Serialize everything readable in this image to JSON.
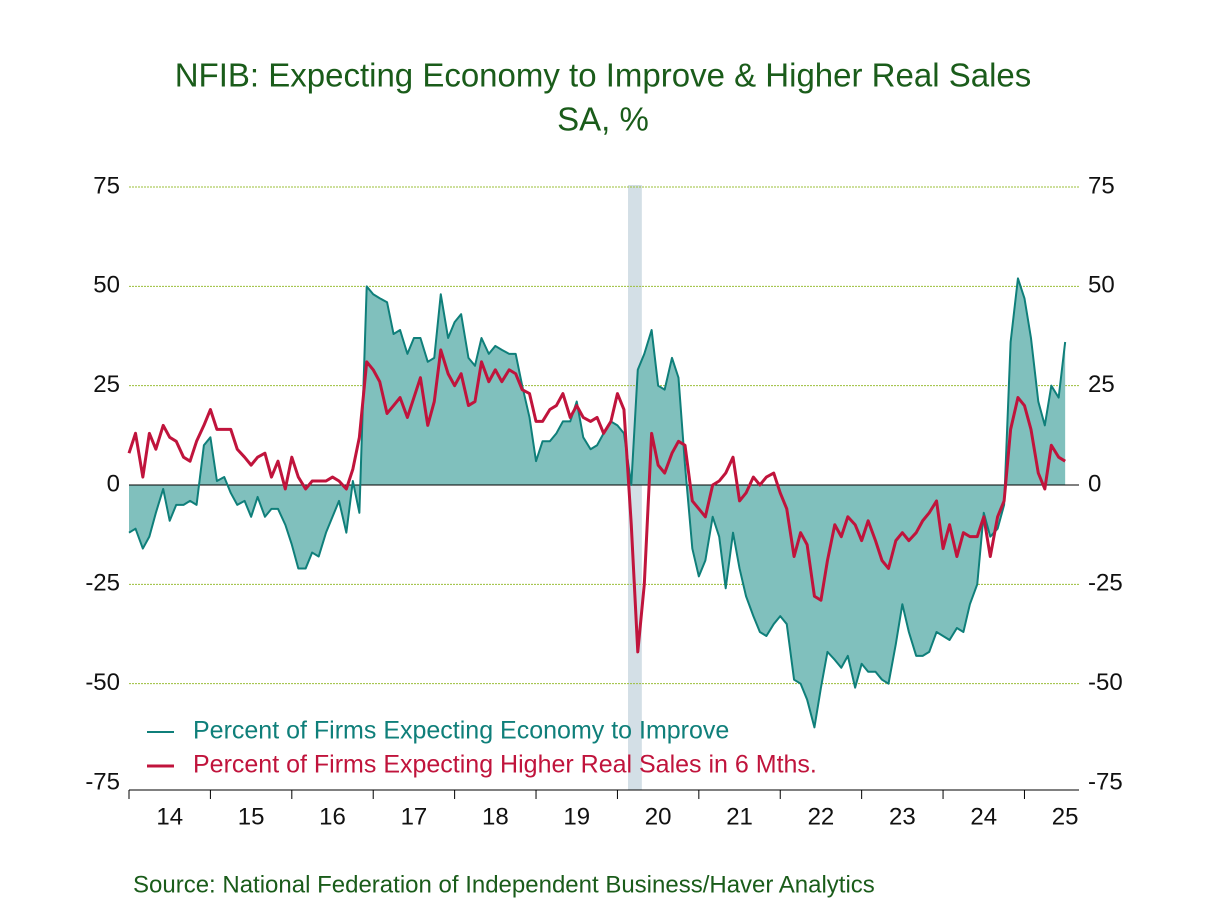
{
  "chart_data": {
    "type": "line",
    "title": "NFIB: Expecting Economy to Improve & Higher Real Sales",
    "subtitle": "SA, %",
    "source": "Source:  National Federation of Independent Business/Haver Analytics",
    "xlim": [
      2014,
      2025.67
    ],
    "xticks": [
      {
        "value": 2014,
        "label": "14"
      },
      {
        "value": 2015,
        "label": "15"
      },
      {
        "value": 2016,
        "label": "16"
      },
      {
        "value": 2017,
        "label": "17"
      },
      {
        "value": 2018,
        "label": "18"
      },
      {
        "value": 2019,
        "label": "19"
      },
      {
        "value": 2020,
        "label": "20"
      },
      {
        "value": 2021,
        "label": "21"
      },
      {
        "value": 2022,
        "label": "22"
      },
      {
        "value": 2023,
        "label": "23"
      },
      {
        "value": 2024,
        "label": "24"
      },
      {
        "value": 2025,
        "label": "25"
      }
    ],
    "ylim": [
      -75,
      75
    ],
    "yticks": [
      -75,
      -50,
      -25,
      0,
      25,
      50,
      75
    ],
    "y2lim": [
      -75,
      75
    ],
    "y2ticks": [
      -75,
      -50,
      -25,
      0,
      25,
      50,
      75
    ],
    "grid": true,
    "grid_color": "#9bbf3a",
    "shaded_periods": [
      [
        2020.13,
        2020.3
      ]
    ],
    "shade_color": "#d3dfe6",
    "legend": "lower left",
    "x": [
      2014.0,
      2014.08,
      2014.17,
      2014.25,
      2014.33,
      2014.42,
      2014.5,
      2014.58,
      2014.67,
      2014.75,
      2014.83,
      2014.92,
      2015.0,
      2015.08,
      2015.17,
      2015.25,
      2015.33,
      2015.42,
      2015.5,
      2015.58,
      2015.67,
      2015.75,
      2015.83,
      2015.92,
      2016.0,
      2016.08,
      2016.17,
      2016.25,
      2016.33,
      2016.42,
      2016.5,
      2016.58,
      2016.67,
      2016.75,
      2016.83,
      2016.92,
      2017.0,
      2017.08,
      2017.17,
      2017.25,
      2017.33,
      2017.42,
      2017.5,
      2017.58,
      2017.67,
      2017.75,
      2017.83,
      2017.92,
      2018.0,
      2018.08,
      2018.17,
      2018.25,
      2018.33,
      2018.42,
      2018.5,
      2018.58,
      2018.67,
      2018.75,
      2018.83,
      2018.92,
      2019.0,
      2019.08,
      2019.17,
      2019.25,
      2019.33,
      2019.42,
      2019.5,
      2019.58,
      2019.67,
      2019.75,
      2019.83,
      2019.92,
      2020.0,
      2020.08,
      2020.17,
      2020.25,
      2020.33,
      2020.42,
      2020.5,
      2020.58,
      2020.67,
      2020.75,
      2020.83,
      2020.92,
      2021.0,
      2021.08,
      2021.17,
      2021.25,
      2021.33,
      2021.42,
      2021.5,
      2021.58,
      2021.67,
      2021.75,
      2021.83,
      2021.92,
      2022.0,
      2022.08,
      2022.17,
      2022.25,
      2022.33,
      2022.42,
      2022.5,
      2022.58,
      2022.67,
      2022.75,
      2022.83,
      2022.92,
      2023.0,
      2023.08,
      2023.17,
      2023.25,
      2023.33,
      2023.42,
      2023.5,
      2023.58,
      2023.67,
      2023.75,
      2023.83,
      2023.92,
      2024.0,
      2024.08,
      2024.17,
      2024.25,
      2024.33,
      2024.42,
      2024.5,
      2024.58,
      2024.67,
      2024.75,
      2024.83,
      2024.92,
      2025.0,
      2025.08,
      2025.17,
      2025.25,
      2025.33,
      2025.42,
      2025.5
    ],
    "series": [
      {
        "name": "Percent of Firms Expecting Economy to Improve",
        "color": "#0f7f7a",
        "fill": "#80c0bd",
        "area": true,
        "width": 2,
        "values": [
          -12,
          -11,
          -16,
          -13,
          -7,
          -1,
          -9,
          -5,
          -5,
          -4,
          -5,
          10,
          12,
          1,
          2,
          -2,
          -5,
          -4,
          -8,
          -3,
          -8,
          -6,
          -6,
          -10,
          -15,
          -21,
          -21,
          -17,
          -18,
          -12,
          -8,
          -4,
          -12,
          1,
          -7,
          50,
          48,
          47,
          46,
          38,
          39,
          33,
          37,
          37,
          31,
          32,
          48,
          37,
          41,
          43,
          32,
          30,
          37,
          33,
          35,
          34,
          33,
          33,
          25,
          17,
          6,
          11,
          11,
          13,
          16,
          16,
          21,
          12,
          9,
          10,
          13,
          16,
          15,
          13,
          0,
          29,
          33,
          39,
          25,
          24,
          32,
          27,
          5,
          -16,
          -23,
          -19,
          -8,
          -13,
          -26,
          -12,
          -21,
          -28,
          -33,
          -37,
          -38,
          -35,
          -33,
          -35,
          -49,
          -50,
          -54,
          -61,
          -51,
          -42,
          -44,
          -46,
          -43,
          -51,
          -45,
          -47,
          -47,
          -49,
          -50,
          -40,
          -30,
          -37,
          -43,
          -43,
          -42,
          -37,
          -38,
          -39,
          -36,
          -37,
          -30,
          -25,
          -7,
          -13,
          -11,
          -5,
          36,
          52,
          47,
          37,
          21,
          15,
          25,
          22,
          36
        ]
      },
      {
        "name": "Percent of Firms Expecting Higher Real Sales in 6 Mths.",
        "color": "#c0143c",
        "area": false,
        "width": 3,
        "values": [
          8,
          13,
          2,
          13,
          9,
          15,
          12,
          11,
          7,
          6,
          11,
          15,
          19,
          14,
          14,
          14,
          9,
          7,
          5,
          7,
          8,
          2,
          6,
          -1,
          7,
          2,
          -1,
          1,
          1,
          1,
          2,
          1,
          -1,
          4,
          12,
          31,
          29,
          26,
          18,
          20,
          22,
          17,
          22,
          27,
          15,
          21,
          34,
          28,
          25,
          28,
          20,
          21,
          31,
          26,
          29,
          26,
          29,
          28,
          24,
          23,
          16,
          16,
          19,
          20,
          23,
          17,
          20,
          17,
          16,
          17,
          13,
          16,
          23,
          19,
          -10,
          -42,
          -25,
          13,
          5,
          3,
          8,
          11,
          10,
          -4,
          -6,
          -8,
          0,
          1,
          3,
          7,
          -4,
          -2,
          2,
          0,
          2,
          3,
          -2,
          -6,
          -18,
          -12,
          -15,
          -28,
          -29,
          -19,
          -10,
          -13,
          -8,
          -10,
          -14,
          -9,
          -14,
          -19,
          -21,
          -14,
          -12,
          -14,
          -12,
          -9,
          -7,
          -4,
          -16,
          -10,
          -18,
          -12,
          -13,
          -13,
          -8,
          -18,
          -8,
          -4,
          14,
          22,
          20,
          14,
          3,
          -1,
          10,
          7,
          6
        ]
      }
    ]
  }
}
